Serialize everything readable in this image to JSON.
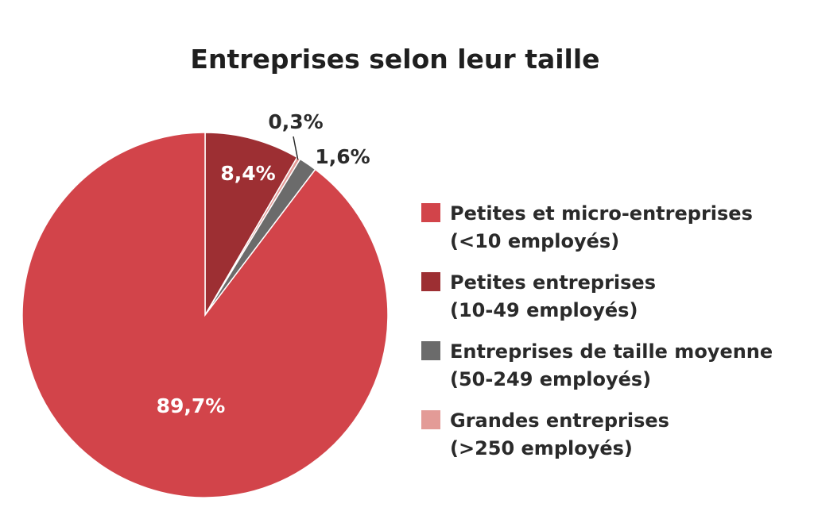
{
  "chart_data": {
    "type": "pie",
    "title": "Entreprises selon leur taille",
    "slices": [
      {
        "label_line1": "Petites et micro-entreprises",
        "label_line2": "(<10 employés)",
        "value": 89.7,
        "value_label": "89,7%",
        "color": "#d2444a"
      },
      {
        "label_line1": "Petites entreprises",
        "label_line2": "(10-49 employés)",
        "value": 8.4,
        "value_label": "8,4%",
        "color": "#9d2f33"
      },
      {
        "label_line1": "Grandes entreprises",
        "label_line2": "(>250 employés)",
        "value": 0.3,
        "value_label": "0,3%",
        "color": "#e39b97"
      },
      {
        "label_line1": "Entreprises de taille moyenne",
        "label_line2": "(50-249 employés)",
        "value": 1.6,
        "value_label": "1,6%",
        "color": "#6b6b6b"
      }
    ],
    "legend": [
      {
        "line1": "Petites et micro-entreprises",
        "line2": "(<10 employés)",
        "color": "#d2444a"
      },
      {
        "line1": "Petites entreprises",
        "line2": "(10-49 employés)",
        "color": "#9d2f33"
      },
      {
        "line1": "Entreprises de taille moyenne",
        "line2": "(50-249 employés)",
        "color": "#6b6b6b"
      },
      {
        "line1": "Grandes entreprises",
        "line2": "(>250 employés)",
        "color": "#e39b97"
      }
    ],
    "legend_position": "right"
  }
}
